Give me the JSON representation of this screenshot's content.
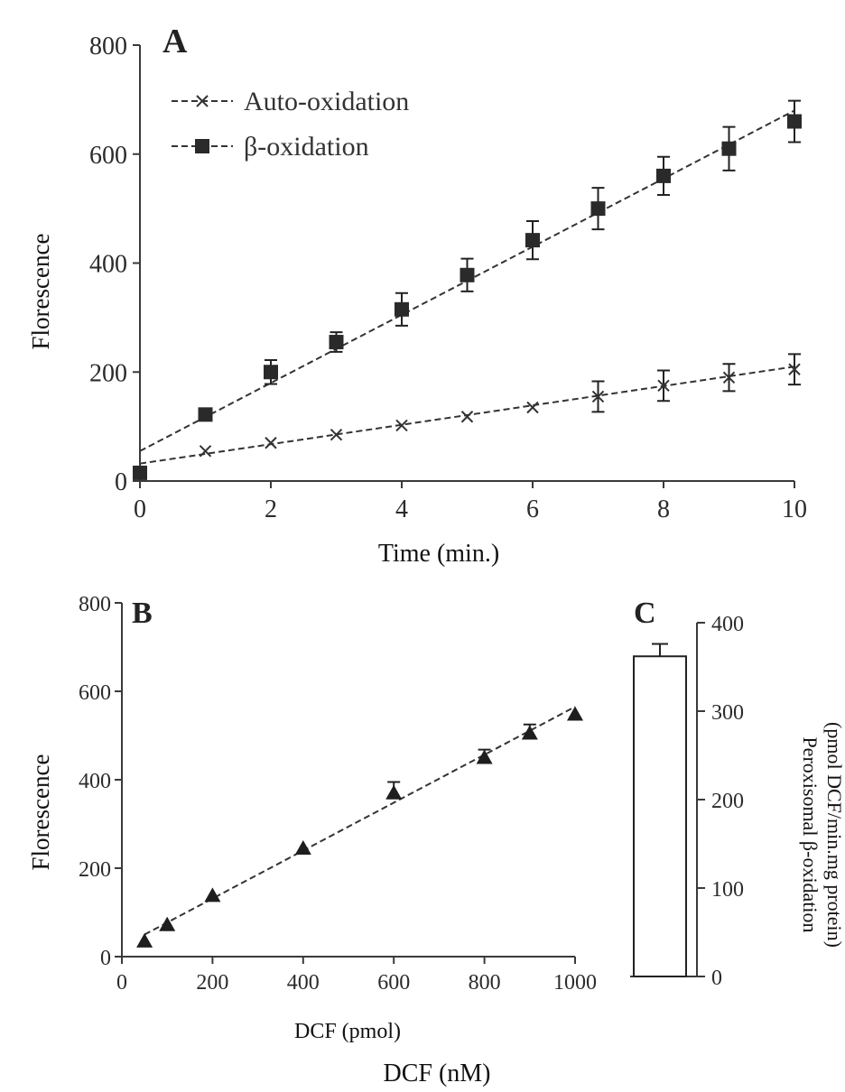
{
  "chart_data": [
    {
      "panel": "A",
      "type": "line",
      "xlabel": "Time (min.)",
      "ylabel": "Florescence",
      "xlim": [
        0,
        10
      ],
      "ylim": [
        0,
        800
      ],
      "xticks": [
        0,
        2,
        4,
        6,
        8,
        10
      ],
      "yticks": [
        0,
        200,
        400,
        600,
        800
      ],
      "legend_position": "top-left",
      "series": [
        {
          "name": "Auto-oxidation",
          "marker": "x",
          "x": [
            1,
            2,
            3,
            4,
            5,
            6,
            7,
            8,
            9,
            10
          ],
          "y": [
            55,
            70,
            85,
            102,
            118,
            135,
            155,
            175,
            190,
            205
          ],
          "err": [
            0,
            0,
            0,
            0,
            0,
            0,
            28,
            28,
            25,
            28
          ],
          "fit": [
            [
              0,
              32
            ],
            [
              10,
              210
            ]
          ]
        },
        {
          "name": "β-oxidation",
          "marker": "square",
          "x": [
            0,
            1,
            2,
            3,
            4,
            5,
            6,
            7,
            8,
            9,
            10
          ],
          "y": [
            15,
            122,
            200,
            255,
            315,
            378,
            442,
            500,
            560,
            610,
            660
          ],
          "err": [
            0,
            10,
            22,
            18,
            30,
            30,
            35,
            38,
            35,
            40,
            38
          ],
          "fit": [
            [
              0,
              55
            ],
            [
              10,
              680
            ]
          ]
        }
      ]
    },
    {
      "panel": "B",
      "type": "scatter",
      "xlabel": "DCF (pmol)",
      "ylabel": "Florescence",
      "xlim": [
        0,
        1000
      ],
      "ylim": [
        0,
        800
      ],
      "xticks": [
        0,
        200,
        400,
        600,
        800,
        1000
      ],
      "yticks": [
        0,
        200,
        400,
        600,
        800
      ],
      "series": [
        {
          "marker": "triangle",
          "x": [
            50,
            100,
            200,
            400,
            600,
            800,
            900,
            1000
          ],
          "y": [
            35,
            72,
            138,
            245,
            370,
            450,
            505,
            548
          ],
          "err": [
            0,
            0,
            0,
            0,
            25,
            18,
            20,
            0
          ],
          "fit": [
            [
              50,
              50
            ],
            [
              1000,
              565
            ]
          ]
        }
      ]
    },
    {
      "panel": "C",
      "type": "bar",
      "ylabel_line1": "Peroxisomal β-oxidation",
      "ylabel_line2": "(pmol DCF/min.mg protein)",
      "ylim": [
        0,
        400
      ],
      "yticks": [
        0,
        100,
        200,
        300,
        400
      ],
      "values": [
        362
      ],
      "err": [
        14
      ]
    }
  ],
  "footer_label": "DCF (nM)"
}
